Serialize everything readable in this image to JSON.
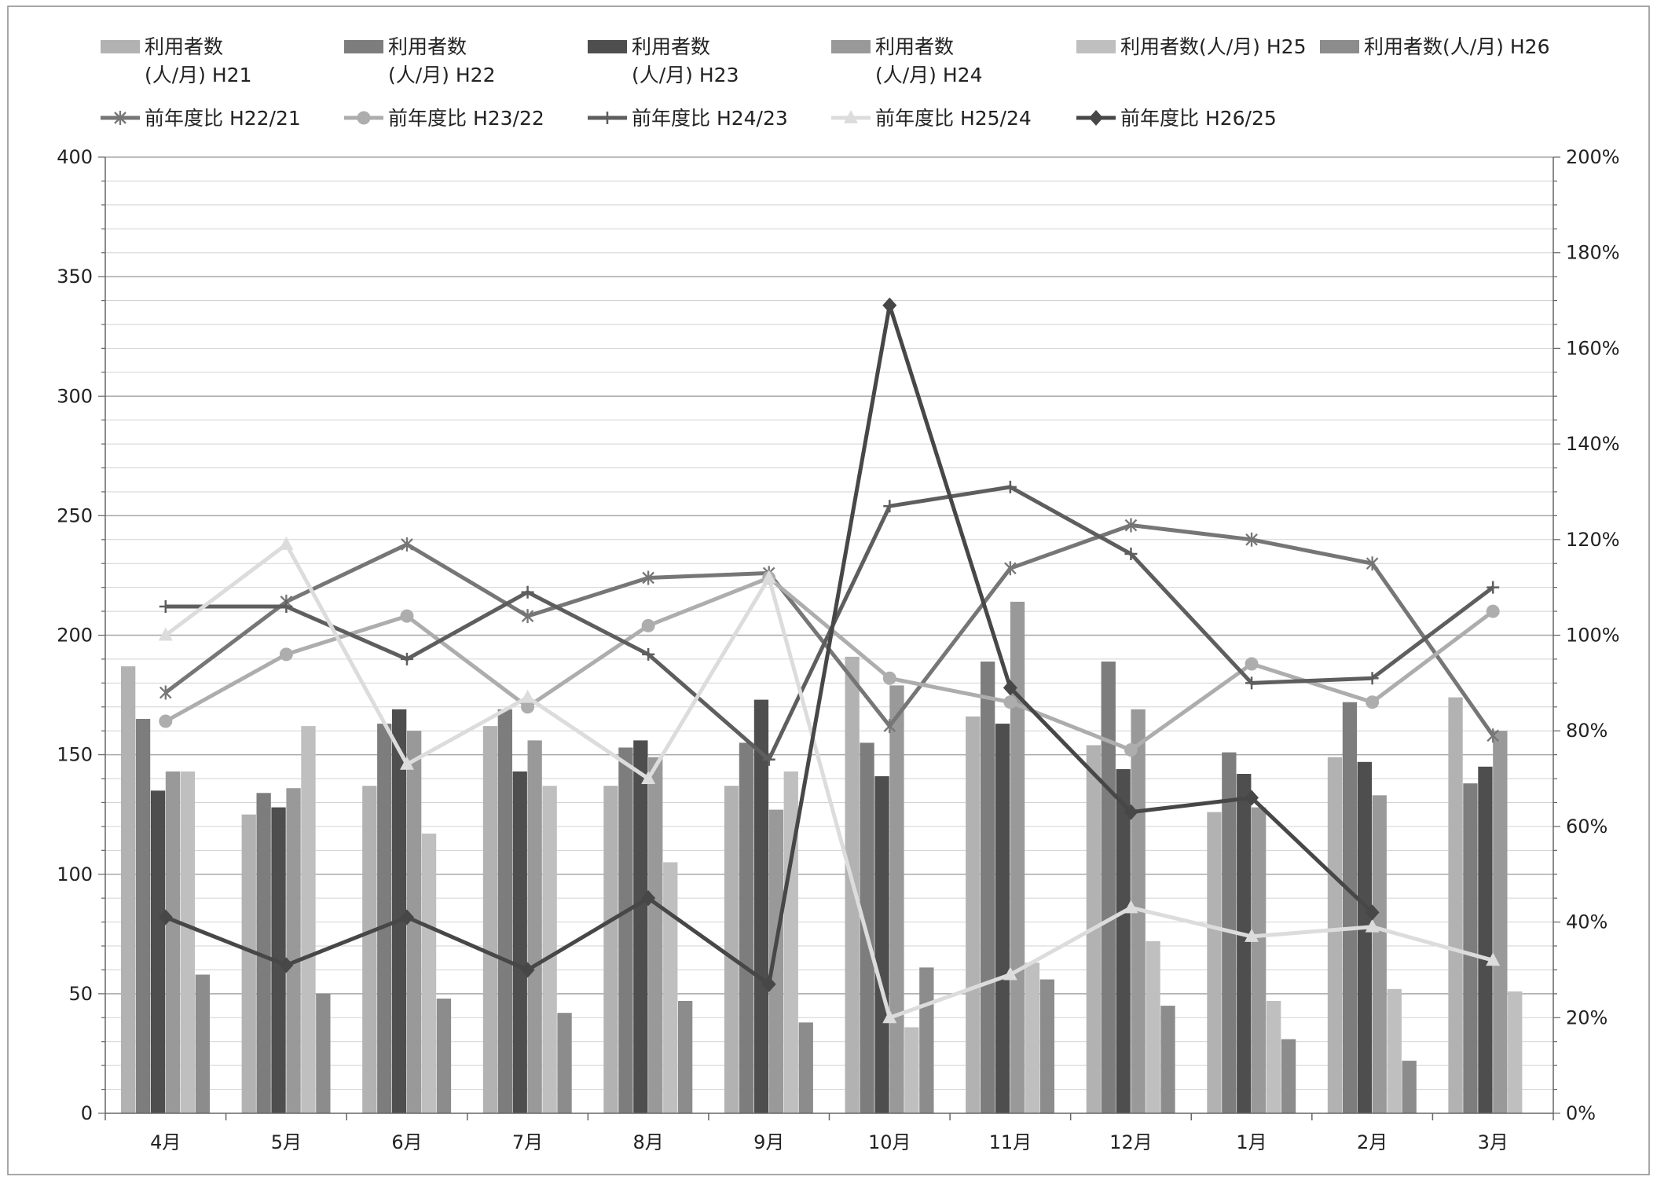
{
  "chart_data": {
    "type": "bar",
    "categories": [
      "4月",
      "5月",
      "6月",
      "7月",
      "8月",
      "9月",
      "10月",
      "11月",
      "12月",
      "1月",
      "2月",
      "3月"
    ],
    "left_axis": {
      "ylim": [
        0,
        400
      ],
      "ticks": [
        "0",
        "50",
        "100",
        "150",
        "200",
        "250",
        "300",
        "350",
        "400"
      ]
    },
    "right_axis": {
      "ylim": [
        0,
        200
      ],
      "unit": "%",
      "ticks": [
        "0%",
        "20%",
        "40%",
        "60%",
        "80%",
        "100%",
        "120%",
        "140%",
        "160%",
        "180%",
        "200%"
      ]
    },
    "grid": true,
    "legend_placement": "top",
    "bar_series": [
      {
        "name": "利用者数(人/月) H21",
        "legend_lines": [
          "利用者数",
          "(人/月) H21"
        ],
        "color": "#b2b2b2",
        "values": [
          187,
          125,
          137,
          162,
          137,
          137,
          191,
          166,
          154,
          126,
          149,
          174
        ]
      },
      {
        "name": "利用者数(人/月) H22",
        "legend_lines": [
          "利用者数",
          "(人/月) H22"
        ],
        "color": "#7d7d7d",
        "values": [
          165,
          134,
          163,
          169,
          153,
          155,
          155,
          189,
          189,
          151,
          172,
          138
        ]
      },
      {
        "name": "利用者数(人/月) H23",
        "legend_lines": [
          "利用者数",
          "(人/月) H23"
        ],
        "color": "#4e4e4e",
        "values": [
          135,
          128,
          169,
          143,
          156,
          173,
          141,
          163,
          144,
          142,
          147,
          145
        ]
      },
      {
        "name": "利用者数(人/月) H24",
        "legend_lines": [
          "利用者数",
          "(人/月) H24"
        ],
        "color": "#999999",
        "values": [
          143,
          136,
          160,
          156,
          149,
          127,
          179,
          214,
          169,
          128,
          133,
          160
        ]
      },
      {
        "name": "利用者数(人/月) H25",
        "legend_lines": [
          "利用者数(人/月) H25"
        ],
        "color": "#bfbfbf",
        "values": [
          143,
          162,
          117,
          137,
          105,
          143,
          36,
          63,
          72,
          47,
          52,
          51
        ]
      },
      {
        "name": "利用者数(人/月) H26",
        "legend_lines": [
          "利用者数(人/月) H26"
        ],
        "color": "#8c8c8c",
        "values": [
          58,
          50,
          48,
          42,
          47,
          38,
          61,
          56,
          45,
          31,
          22,
          null
        ]
      }
    ],
    "line_series": [
      {
        "name": "前年度比 H22/21",
        "color": "#767676",
        "marker": "star",
        "values": [
          88,
          107,
          119,
          104,
          112,
          113,
          81,
          114,
          123,
          120,
          115,
          79
        ]
      },
      {
        "name": "前年度比 H23/22",
        "color": "#adadad",
        "marker": "circle",
        "values": [
          82,
          96,
          104,
          85,
          102,
          112,
          91,
          86,
          76,
          94,
          86,
          105
        ]
      },
      {
        "name": "前年度比 H24/23",
        "color": "#5e5e5e",
        "marker": "plus",
        "values": [
          106,
          106,
          95,
          109,
          96,
          74,
          127,
          131,
          117,
          90,
          91,
          110
        ]
      },
      {
        "name": "前年度比 H25/24",
        "color": "#dcdcdc",
        "marker": "triangle",
        "values": [
          100,
          119,
          73,
          87,
          70,
          112,
          20,
          29,
          43,
          37,
          39,
          32
        ]
      },
      {
        "name": "前年度比 H26/25",
        "color": "#474747",
        "marker": "diamond",
        "values": [
          41,
          31,
          41,
          30,
          45,
          27,
          169,
          89,
          63,
          66,
          42,
          null
        ]
      }
    ]
  }
}
